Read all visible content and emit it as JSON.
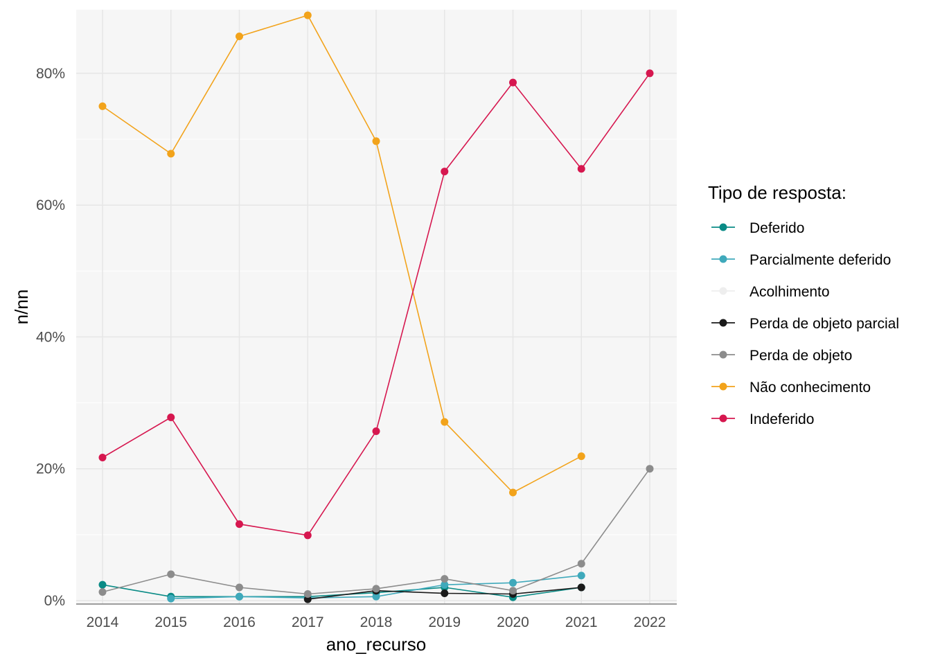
{
  "chart_data": {
    "type": "line",
    "xlabel": "ano_recurso",
    "ylabel": "n/nn",
    "x": [
      2014,
      2015,
      2016,
      2017,
      2018,
      2019,
      2020,
      2021,
      2022
    ],
    "x_tick_labels": [
      "2014",
      "2015",
      "2016",
      "2017",
      "2018",
      "2019",
      "2020",
      "2021",
      "2022"
    ],
    "y_ticks": [
      0,
      20,
      40,
      60,
      80
    ],
    "y_tick_labels": [
      "0%",
      "20%",
      "40%",
      "60%",
      "80%"
    ],
    "ylim": [
      0,
      89
    ],
    "grid": true,
    "legend": {
      "title": "Tipo de resposta:",
      "position": "right"
    },
    "series": [
      {
        "name": "Deferido",
        "color": "#0a8b86",
        "points": [
          [
            2014,
            2.4
          ],
          [
            2015,
            0.6
          ],
          [
            2016,
            0.6
          ],
          [
            2017,
            0.6
          ],
          [
            2018,
            1.2
          ],
          [
            2019,
            2.0
          ],
          [
            2020,
            0.5
          ],
          [
            2021,
            2.0
          ]
        ]
      },
      {
        "name": "Parcialmente deferido",
        "color": "#3fa9bb",
        "points": [
          [
            2015,
            0.3
          ],
          [
            2016,
            0.6
          ],
          [
            2017,
            0.4
          ],
          [
            2018,
            0.6
          ],
          [
            2019,
            2.4
          ],
          [
            2020,
            2.7
          ],
          [
            2021,
            3.8
          ]
        ]
      },
      {
        "name": "Acolhimento",
        "color": "#eeeeee",
        "points": []
      },
      {
        "name": "Perda de objeto parcial",
        "color": "#1a1a1a",
        "points": [
          [
            2017,
            0.2
          ],
          [
            2018,
            1.5
          ],
          [
            2019,
            1.1
          ],
          [
            2020,
            1.0
          ],
          [
            2021,
            2.0
          ]
        ]
      },
      {
        "name": "Perda de objeto",
        "color": "#8c8c8c",
        "points": [
          [
            2014,
            1.3
          ],
          [
            2015,
            4.0
          ],
          [
            2016,
            2.0
          ],
          [
            2017,
            1.0
          ],
          [
            2018,
            1.8
          ],
          [
            2019,
            3.3
          ],
          [
            2020,
            1.5
          ],
          [
            2021,
            5.6
          ],
          [
            2022,
            20.0
          ]
        ]
      },
      {
        "name": "Não conhecimento",
        "color": "#f2a31b",
        "points": [
          [
            2014,
            75.0
          ],
          [
            2015,
            67.8
          ],
          [
            2016,
            85.6
          ],
          [
            2017,
            88.8
          ],
          [
            2018,
            69.7
          ],
          [
            2019,
            27.1
          ],
          [
            2020,
            16.4
          ],
          [
            2021,
            21.9
          ]
        ]
      },
      {
        "name": "Indeferido",
        "color": "#d6174f",
        "points": [
          [
            2014,
            21.7
          ],
          [
            2015,
            27.8
          ],
          [
            2016,
            11.6
          ],
          [
            2017,
            9.9
          ],
          [
            2018,
            25.7
          ],
          [
            2019,
            65.1
          ],
          [
            2020,
            78.6
          ],
          [
            2021,
            65.5
          ],
          [
            2022,
            80.0
          ]
        ]
      }
    ]
  }
}
